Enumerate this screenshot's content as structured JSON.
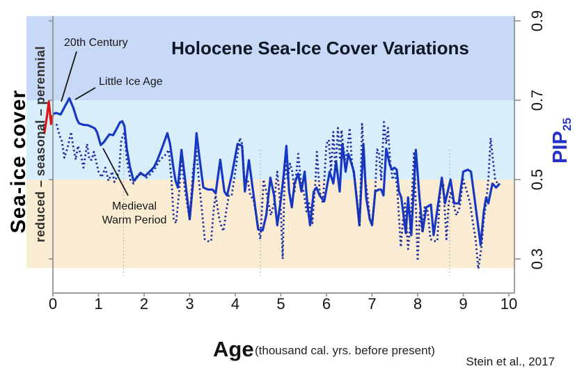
{
  "title": "Holocene Sea-Ice Cover Variations",
  "credit": "Stein et al., 2017",
  "annotations": {
    "twentieth_century": "20th Century",
    "little_ice_age": "Little Ice Age",
    "medieval_line1": "Medieval",
    "medieval_line2": "Warm Period"
  },
  "axes": {
    "x_label": "Age",
    "x_sublabel": "(thousand cal. yrs. before present)",
    "x_ticks": [
      "0",
      "1",
      "2",
      "3",
      "4",
      "5",
      "6",
      "7",
      "8",
      "9",
      "10"
    ],
    "y_right_ticks": [
      "0.9",
      "0.7",
      "0.5",
      "0.3"
    ],
    "y_right_tick_values": [
      0.9,
      0.7,
      0.5,
      0.3
    ],
    "y_right_label": "PIP",
    "y_right_label_sub": "25",
    "y_left_label": "Sea-ice cover",
    "y_band_label": "reduced – seasonal – perennial"
  },
  "colors": {
    "band_perennial": "#c8d9f7",
    "band_seasonal": "#d9eefb",
    "band_reduced": "#faecd2",
    "solid_line": "#1638c4",
    "dotted_line": "#1d2f9c",
    "red_mark": "#dc1414",
    "spine": "#8e8e8e",
    "gridline": "#b5b5b5",
    "pip_label": "#2531c8"
  },
  "chart_data": {
    "type": "line",
    "title": "Holocene Sea-Ice Cover Variations",
    "xlabel": "Age (thousand cal. yrs. before present)",
    "ylabel": "PIP25",
    "xlim": [
      0,
      10
    ],
    "ylim": [
      0.28,
      0.92
    ],
    "grid": "off",
    "event_gridlines_x": [
      1.55,
      4.55,
      8.7
    ],
    "bands": [
      {
        "name": "perennial",
        "from": 0.7,
        "to": 0.912,
        "color": "#c8d9f7"
      },
      {
        "name": "seasonal",
        "from": 0.5,
        "to": 0.7,
        "color": "#d9eefb"
      },
      {
        "name": "reduced",
        "from": 0.277,
        "to": 0.5,
        "color": "#faecd2"
      }
    ],
    "series": [
      {
        "name": "PIP25 solid record",
        "style": "solid",
        "color": "#1638c4",
        "x": [
          0,
          0.07,
          0.17,
          0.27,
          0.36,
          0.45,
          0.52,
          0.57,
          0.67,
          0.77,
          0.85,
          0.92,
          0.97,
          1.05,
          1.12,
          1.17,
          1.24,
          1.32,
          1.39,
          1.47,
          1.52,
          1.57,
          1.62,
          1.69,
          1.77,
          1.84,
          1.92,
          2.02,
          2.12,
          2.22,
          2.29,
          2.39,
          2.51,
          2.57,
          2.64,
          2.69,
          2.74,
          2.82,
          2.9,
          3.0,
          3.08,
          3.15,
          3.22,
          3.3,
          3.4,
          3.5,
          3.57,
          3.67,
          3.76,
          3.82,
          3.92,
          4.05,
          4.15,
          4.21,
          4.3,
          4.42,
          4.5,
          4.6,
          4.68,
          4.77,
          4.85,
          4.92,
          5.0,
          5.06,
          5.12,
          5.18,
          5.24,
          5.3,
          5.38,
          5.45,
          5.52,
          5.58,
          5.64,
          5.72,
          5.78,
          5.85,
          5.95,
          6.07,
          6.15,
          6.21,
          6.29,
          6.35,
          6.42,
          6.48,
          6.55,
          6.6,
          6.66,
          6.72,
          6.81,
          6.87,
          6.95,
          7.0,
          7.07,
          7.15,
          7.2,
          7.25,
          7.31,
          7.39,
          7.44,
          7.49,
          7.54,
          7.59,
          7.64,
          7.74,
          7.79,
          7.86,
          7.96,
          8.04,
          8.11,
          8.19,
          8.29,
          8.35,
          8.45,
          8.53,
          8.6,
          8.66,
          8.72,
          8.8,
          8.9,
          9.0,
          9.1,
          9.17,
          9.25,
          9.33,
          9.38,
          9.45,
          9.5,
          9.55,
          9.64,
          9.72,
          9.8
        ],
        "y": [
          0.665,
          0.668,
          0.664,
          0.686,
          0.705,
          0.68,
          0.654,
          0.642,
          0.638,
          0.637,
          0.633,
          0.629,
          0.619,
          0.587,
          0.595,
          0.603,
          0.614,
          0.612,
          0.626,
          0.644,
          0.647,
          0.635,
          0.578,
          0.532,
          0.497,
          0.505,
          0.517,
          0.509,
          0.52,
          0.532,
          0.549,
          0.578,
          0.617,
          0.59,
          0.532,
          0.497,
          0.48,
          0.575,
          0.5,
          0.4,
          0.5,
          0.617,
          0.55,
          0.48,
          0.475,
          0.475,
          0.465,
          0.55,
          0.47,
          0.46,
          0.51,
          0.59,
          0.585,
          0.47,
          0.549,
          0.445,
          0.375,
          0.372,
          0.41,
          0.505,
          0.46,
          0.385,
          0.45,
          0.51,
          0.585,
          0.47,
          0.43,
          0.49,
          0.515,
          0.47,
          0.52,
          0.44,
          0.385,
          0.47,
          0.48,
          0.46,
          0.445,
          0.52,
          0.49,
          0.545,
          0.47,
          0.59,
          0.52,
          0.565,
          0.54,
          0.52,
          0.455,
          0.385,
          0.59,
          0.455,
          0.4,
          0.385,
          0.47,
          0.475,
          0.475,
          0.46,
          0.578,
          0.537,
          0.525,
          0.53,
          0.525,
          0.47,
          0.455,
          0.365,
          0.455,
          0.36,
          0.575,
          0.455,
          0.37,
          0.43,
          0.437,
          0.36,
          0.44,
          0.505,
          0.44,
          0.47,
          0.5,
          0.44,
          0.44,
          0.52,
          0.525,
          0.52,
          0.45,
          0.38,
          0.335,
          0.42,
          0.455,
          0.44,
          0.49,
          0.48,
          0.49
        ]
      },
      {
        "name": "PIP25 dotted record",
        "style": "dotted",
        "color": "#1d2f9c",
        "x": [
          0.08,
          0.15,
          0.2,
          0.25,
          0.32,
          0.4,
          0.45,
          0.5,
          0.55,
          0.62,
          0.67,
          0.75,
          0.8,
          0.85,
          0.9,
          1.0,
          1.07,
          1.15,
          1.22,
          1.3,
          1.35,
          1.45,
          1.5,
          1.57,
          1.62,
          1.7,
          1.77,
          1.85,
          1.95,
          2.05,
          2.15,
          2.25,
          2.35,
          2.45,
          2.54,
          2.6,
          2.65,
          2.7,
          2.77,
          2.82,
          2.9,
          3.0,
          3.07,
          3.14,
          3.2,
          3.27,
          3.33,
          3.4,
          3.47,
          3.53,
          3.57,
          3.65,
          3.7,
          3.74,
          3.8,
          3.86,
          3.92,
          4.0,
          4.1,
          4.15,
          4.2,
          4.27,
          4.33,
          4.4,
          4.5,
          4.55,
          4.62,
          4.68,
          4.73,
          4.78,
          4.85,
          4.92,
          5.0,
          5.04,
          5.09,
          5.15,
          5.2,
          5.25,
          5.3,
          5.38,
          5.45,
          5.5,
          5.56,
          5.62,
          5.69,
          5.76,
          5.79,
          5.85,
          5.92,
          6.0,
          6.05,
          6.1,
          6.15,
          6.2,
          6.25,
          6.3,
          6.33,
          6.4,
          6.45,
          6.51,
          6.56,
          6.62,
          6.66,
          6.73,
          6.78,
          6.85,
          6.9,
          6.95,
          7.0,
          7.07,
          7.11,
          7.15,
          7.2,
          7.26,
          7.31,
          7.35,
          7.4,
          7.45,
          7.5,
          7.55,
          7.63,
          7.68,
          7.72,
          7.79,
          7.85,
          7.92,
          8.0,
          8.05,
          8.1,
          8.15,
          8.22,
          8.28,
          8.35,
          8.43,
          8.5,
          8.56,
          8.63,
          8.68,
          8.73,
          8.8,
          8.85,
          8.92,
          9.0,
          9.08,
          9.15,
          9.2,
          9.27,
          9.33,
          9.4,
          9.45,
          9.5,
          9.55,
          9.6,
          9.65,
          9.7,
          9.78
        ],
        "y": [
          0.64,
          0.61,
          0.596,
          0.555,
          0.58,
          0.62,
          0.58,
          0.55,
          0.585,
          0.56,
          0.53,
          0.59,
          0.55,
          0.55,
          0.57,
          0.52,
          0.506,
          0.53,
          0.497,
          0.52,
          0.494,
          0.52,
          0.6,
          0.62,
          0.55,
          0.5,
          0.49,
          0.51,
          0.515,
          0.505,
          0.515,
          0.53,
          0.55,
          0.56,
          0.575,
          0.5,
          0.4,
          0.39,
          0.47,
          0.555,
          0.47,
          0.4,
          0.52,
          0.58,
          0.5,
          0.42,
          0.35,
          0.345,
          0.345,
          0.43,
          0.46,
          0.4,
          0.38,
          0.37,
          0.42,
          0.46,
          0.46,
          0.52,
          0.605,
          0.59,
          0.5,
          0.5,
          0.46,
          0.45,
          0.38,
          0.35,
          0.5,
          0.47,
          0.44,
          0.41,
          0.44,
          0.52,
          0.42,
          0.3,
          0.55,
          0.5,
          0.54,
          0.52,
          0.47,
          0.565,
          0.48,
          0.47,
          0.42,
          0.44,
          0.39,
          0.5,
          0.57,
          0.47,
          0.44,
          0.59,
          0.6,
          0.52,
          0.62,
          0.52,
          0.63,
          0.55,
          0.625,
          0.55,
          0.57,
          0.63,
          0.54,
          0.5,
          0.46,
          0.385,
          0.64,
          0.5,
          0.46,
          0.4,
          0.385,
          0.474,
          0.576,
          0.57,
          0.5,
          0.645,
          0.59,
          0.63,
          0.54,
          0.5,
          0.52,
          0.48,
          0.33,
          0.4,
          0.44,
          0.325,
          0.4,
          0.57,
          0.295,
          0.42,
          0.37,
          0.43,
          0.42,
          0.35,
          0.345,
          0.345,
          0.48,
          0.49,
          0.35,
          0.44,
          0.47,
          0.43,
          0.41,
          0.43,
          0.5,
          0.47,
          0.44,
          0.4,
          0.35,
          0.275,
          0.33,
          0.4,
          0.44,
          0.5,
          0.605,
          0.55,
          0.5,
          0.485
        ]
      },
      {
        "name": "20th century warming (red)",
        "style": "solid",
        "color": "#dc1414",
        "x": [
          -0.19,
          -0.13,
          -0.09,
          -0.04,
          0
        ],
        "y": [
          0.615,
          0.66,
          0.697,
          0.64,
          0.663
        ]
      }
    ]
  }
}
